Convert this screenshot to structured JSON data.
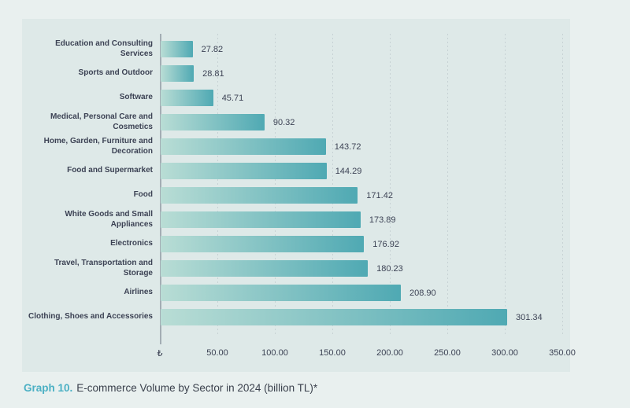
{
  "page": {
    "background_color": "#e9f0ef",
    "panel_color": "#dee9e8"
  },
  "caption": {
    "prefix": "Graph 10.",
    "text": "E-commerce Volume by Sector in 2024 (billion TL)*",
    "prefix_color": "#4bb0c4",
    "text_color": "#3a404c"
  },
  "chart_data": {
    "type": "bar",
    "orientation": "horizontal",
    "title": "E-commerce Volume by Sector in 2024 (billion TL)",
    "categories": [
      "Education and Consulting Services",
      "Sports and Outdoor",
      "Software",
      "Medical, Personal Care and\nCosmetics",
      "Home, Garden, Furniture and\nDecoration",
      "Food and Supermarket",
      "Food",
      "White Goods and Small\nAppliances",
      "Electronics",
      "Travel, Transportation and\nStorage",
      "Airlines",
      "Clothing, Shoes and Accessories"
    ],
    "values": [
      27.82,
      28.81,
      45.71,
      90.32,
      143.72,
      144.29,
      171.42,
      173.89,
      176.92,
      180.23,
      208.9,
      301.34
    ],
    "value_labels": [
      "27.82",
      "28.81",
      "45.71",
      "90.32",
      "143.72",
      "144.29",
      "171.42",
      "173.89",
      "176.92",
      "180.23",
      "208.90",
      "301.34"
    ],
    "xlabel": "",
    "ylabel": "",
    "xlim": [
      0,
      350
    ],
    "x_tick_step": 50,
    "x_tick_labels": [
      "₺",
      "50.00",
      "100.00",
      "150.00",
      "200.00",
      "250.00",
      "300.00",
      "350.00"
    ],
    "currency_symbol": "₺",
    "grid": "dotted-vertical",
    "legend": "none",
    "bar_gradient_from": "#b9ddd5",
    "bar_gradient_to": "#4fa9b3",
    "text_color": "#3c4254",
    "gridline_color": "#c7d2d4",
    "axis_line_color": "#a3adb4"
  }
}
